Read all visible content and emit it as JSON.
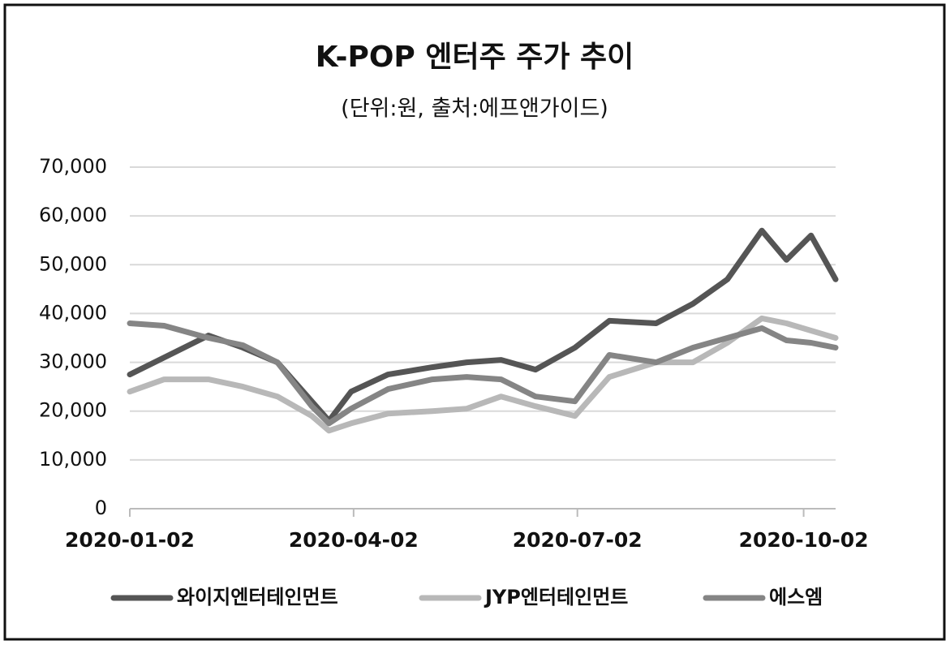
{
  "chart_data": {
    "type": "line",
    "title": "K-POP 엔터주 주가 추이",
    "subtitle": "(단위:원, 출처:에프앤가이드)",
    "x": [
      "2020-01-02",
      "2020-01-16",
      "2020-02-03",
      "2020-02-17",
      "2020-03-02",
      "2020-03-16",
      "2020-03-23",
      "2020-04-01",
      "2020-04-16",
      "2020-05-04",
      "2020-05-18",
      "2020-06-01",
      "2020-06-15",
      "2020-07-01",
      "2020-07-15",
      "2020-08-03",
      "2020-08-18",
      "2020-09-01",
      "2020-09-15",
      "2020-09-25",
      "2020-10-05",
      "2020-10-15"
    ],
    "series": [
      {
        "name": "와이지엔터테인먼트",
        "color": "#555555",
        "values": [
          27500,
          31000,
          35500,
          33000,
          30000,
          22000,
          18000,
          24000,
          27500,
          29000,
          30000,
          30500,
          28500,
          33000,
          38500,
          38000,
          42000,
          47000,
          57000,
          51000,
          56000,
          47000
        ]
      },
      {
        "name": "JYP엔터테인먼트",
        "color": "#b8b8b8",
        "values": [
          24000,
          26500,
          26500,
          25000,
          23000,
          19000,
          16000,
          17500,
          19500,
          20000,
          20500,
          23000,
          21000,
          19000,
          27000,
          30000,
          30000,
          34000,
          39000,
          38000,
          36500,
          35000
        ]
      },
      {
        "name": "에스엠",
        "color": "#858585",
        "values": [
          38000,
          37500,
          35000,
          33500,
          30000,
          21000,
          17500,
          20500,
          24500,
          26500,
          27000,
          26500,
          23000,
          22000,
          31500,
          30000,
          33000,
          35000,
          37000,
          34500,
          34000,
          33000
        ]
      }
    ],
    "xlim": [
      "2020-01-02",
      "2020-10-15"
    ],
    "xticks": [
      "2020-01-02",
      "2020-04-02",
      "2020-07-02",
      "2020-10-02"
    ],
    "ylim": [
      0,
      70000
    ],
    "yticks": [
      0,
      {
        "value": 10000,
        "label": "10,000"
      },
      {
        "value": 20000,
        "label": "20,000"
      },
      {
        "value": 30000,
        "label": "30,000"
      },
      {
        "value": 40000,
        "label": "40,000"
      },
      {
        "value": 50000,
        "label": "50,000"
      },
      {
        "value": 60000,
        "label": "60,000"
      },
      {
        "value": 70000,
        "label": "70,000"
      }
    ],
    "grid": true,
    "legend": "bottom"
  }
}
